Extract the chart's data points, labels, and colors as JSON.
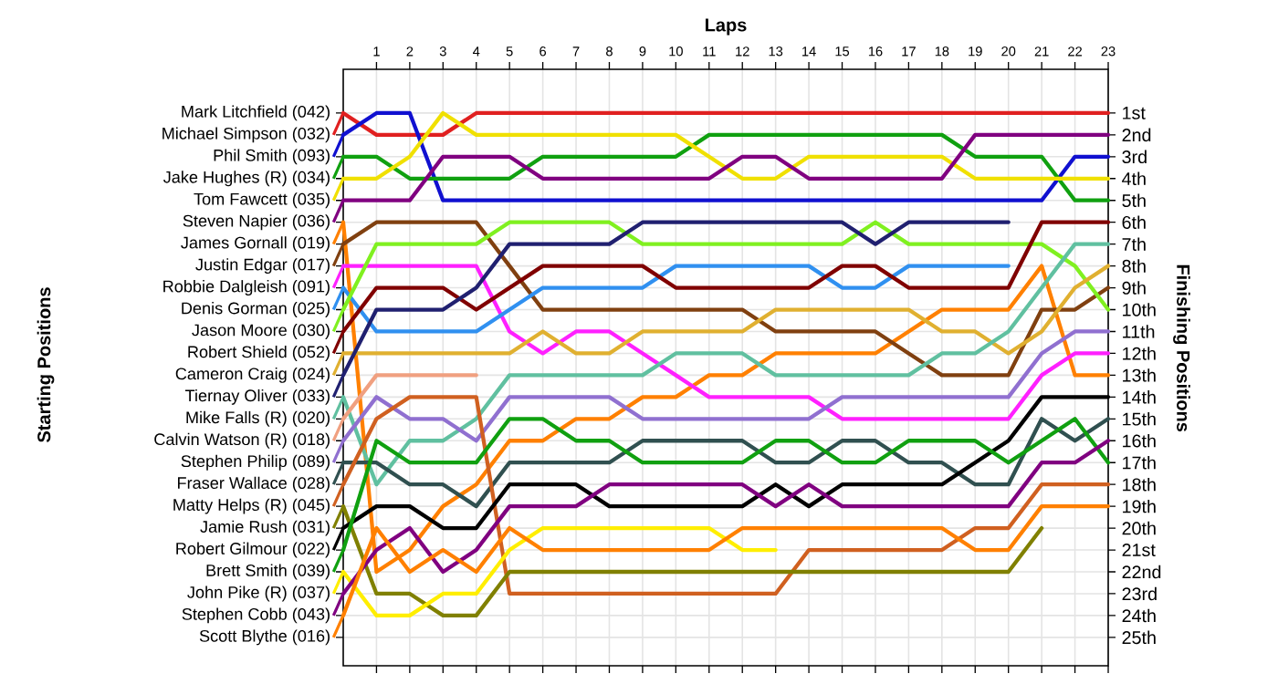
{
  "chart_data": {
    "type": "line",
    "xlabel": "Laps",
    "ylabel": "Finishing Positions",
    "annotations": [
      "Starting Positions",
      "Scott Blythe (016)"
    ],
    "legend": "left",
    "x": [
      0,
      1,
      2,
      3,
      4,
      5,
      6,
      7,
      8,
      9,
      10,
      11,
      12,
      13,
      14,
      15,
      16,
      17,
      18,
      19,
      20,
      21,
      22,
      23
    ],
    "xlim": [
      0,
      23
    ],
    "xticks": [
      1,
      2,
      3,
      4,
      5,
      6,
      7,
      8,
      9,
      10,
      11,
      12,
      13,
      14,
      15,
      16,
      17,
      18,
      19,
      20,
      21,
      22,
      23
    ],
    "ylim": [
      26.3,
      -1
    ],
    "yticks": [
      {
        "value": 1,
        "label": "1st"
      },
      {
        "value": 2,
        "label": "2nd"
      },
      {
        "value": 3,
        "label": "3rd"
      },
      {
        "value": 4,
        "label": "4th"
      },
      {
        "value": 5,
        "label": "5th"
      },
      {
        "value": 6,
        "label": "6th"
      },
      {
        "value": 7,
        "label": "7th"
      },
      {
        "value": 8,
        "label": "8th"
      },
      {
        "value": 9,
        "label": "9th"
      },
      {
        "value": 10,
        "label": "10th"
      },
      {
        "value": 11,
        "label": "11th"
      },
      {
        "value": 12,
        "label": "12th"
      },
      {
        "value": 13,
        "label": "13th"
      },
      {
        "value": 14,
        "label": "14th"
      },
      {
        "value": 15,
        "label": "15th"
      },
      {
        "value": 16,
        "label": "16th"
      },
      {
        "value": 17,
        "label": "17th"
      },
      {
        "value": 18,
        "label": "18th"
      },
      {
        "value": 19,
        "label": "19th"
      },
      {
        "value": 20,
        "label": "20th"
      },
      {
        "value": 21,
        "label": "21st"
      },
      {
        "value": 22,
        "label": "22nd"
      },
      {
        "value": 23,
        "label": "23rd"
      },
      {
        "value": 24,
        "label": "24th"
      },
      {
        "value": 25,
        "label": "25th"
      }
    ],
    "grid": true,
    "series": [
      {
        "name": "Mark Litchfield (042)",
        "color": "#e02020",
        "values": [
          1,
          2,
          2,
          2,
          1,
          1,
          1,
          1,
          1,
          1,
          1,
          1,
          1,
          1,
          1,
          1,
          1,
          1,
          1,
          1,
          1,
          1,
          1,
          1
        ]
      },
      {
        "name": "Michael Simpson (032)",
        "color": "#1010d0",
        "values": [
          2,
          1,
          1,
          5,
          5,
          5,
          5,
          5,
          5,
          5,
          5,
          5,
          5,
          5,
          5,
          5,
          5,
          5,
          5,
          5,
          5,
          5,
          3,
          3
        ]
      },
      {
        "name": "Phil Smith (093)",
        "color": "#10a010",
        "values": [
          3,
          3,
          4,
          4,
          4,
          4,
          3,
          3,
          3,
          3,
          3,
          2,
          2,
          2,
          2,
          2,
          2,
          2,
          2,
          3,
          3,
          3,
          5,
          5
        ]
      },
      {
        "name": "Jake Hughes  (R) (034)",
        "color": "#f0e000",
        "values": [
          4,
          4,
          3,
          1,
          2,
          2,
          2,
          2,
          2,
          2,
          2,
          3,
          4,
          4,
          3,
          3,
          3,
          3,
          3,
          4,
          4,
          4,
          4,
          4
        ]
      },
      {
        "name": "Tom Fawcett (035)",
        "color": "#800080",
        "values": [
          5,
          5,
          5,
          3,
          3,
          3,
          4,
          4,
          4,
          4,
          4,
          4,
          3,
          3,
          4,
          4,
          4,
          4,
          4,
          2,
          2,
          2,
          2,
          2
        ]
      },
      {
        "name": "Steven Napier (036)",
        "color": "#ff8000",
        "values": [
          6,
          22,
          21,
          19,
          18,
          16,
          16,
          15,
          15,
          14,
          14,
          13,
          13,
          12,
          12,
          12,
          12,
          11,
          10,
          10,
          10,
          8,
          13,
          13
        ]
      },
      {
        "name": "James Gornall (019)",
        "color": "#804010",
        "values": [
          7,
          6,
          6,
          6,
          6,
          8,
          10,
          10,
          10,
          10,
          10,
          10,
          10,
          11,
          11,
          11,
          11,
          12,
          13,
          13,
          13,
          10,
          10,
          9
        ]
      },
      {
        "name": "Justin Edgar (017)",
        "color": "#ff20ff",
        "values": [
          8,
          8,
          8,
          8,
          8,
          11,
          12,
          11,
          11,
          12,
          13,
          14,
          14,
          14,
          14,
          15,
          15,
          15,
          15,
          15,
          15,
          13,
          12,
          12
        ]
      },
      {
        "name": "Robbie Dalgleish (091)",
        "color": "#3090f0",
        "values": [
          9,
          11,
          11,
          11,
          11,
          10,
          9,
          9,
          9,
          9,
          8,
          8,
          8,
          8,
          8,
          9,
          9,
          8,
          8,
          8,
          8,
          null,
          null,
          null
        ]
      },
      {
        "name": "Denis Gorman (025)",
        "color": "#80f020",
        "values": [
          10,
          7,
          7,
          7,
          7,
          6,
          6,
          6,
          6,
          7,
          7,
          7,
          7,
          7,
          7,
          7,
          6,
          7,
          7,
          7,
          7,
          7,
          8,
          10
        ]
      },
      {
        "name": "Jason Moore (030)",
        "color": "#800000",
        "values": [
          11,
          9,
          9,
          9,
          10,
          9,
          8,
          8,
          8,
          8,
          9,
          9,
          9,
          9,
          9,
          8,
          8,
          9,
          9,
          9,
          9,
          6,
          6,
          6
        ]
      },
      {
        "name": "Robert Shield (052)",
        "color": "#e0b030",
        "values": [
          12,
          12,
          12,
          12,
          12,
          12,
          11,
          12,
          12,
          11,
          11,
          11,
          11,
          10,
          10,
          10,
          10,
          10,
          11,
          11,
          12,
          11,
          9,
          8
        ]
      },
      {
        "name": "Cameron Craig (024)",
        "color": "#202070",
        "values": [
          13,
          10,
          10,
          10,
          9,
          7,
          7,
          7,
          7,
          6,
          6,
          6,
          6,
          6,
          6,
          6,
          7,
          6,
          6,
          6,
          6,
          null,
          null,
          null
        ]
      },
      {
        "name": "Tiernay Oliver (033)",
        "color": "#60c0a0",
        "values": [
          14,
          18,
          16,
          16,
          15,
          13,
          13,
          13,
          13,
          13,
          12,
          12,
          12,
          13,
          13,
          13,
          13,
          13,
          12,
          12,
          11,
          9,
          7,
          7
        ]
      },
      {
        "name": "Mike Falls  (R) (020)",
        "color": "#f0a080",
        "values": [
          15,
          13,
          13,
          13,
          13,
          null,
          null,
          null,
          null,
          null,
          null,
          null,
          null,
          null,
          null,
          null,
          null,
          null,
          null,
          null,
          null,
          null,
          null,
          null
        ]
      },
      {
        "name": "Calvin Watson (R) (018)",
        "color": "#9070d0",
        "values": [
          16,
          14,
          15,
          15,
          16,
          14,
          14,
          14,
          14,
          15,
          15,
          15,
          15,
          15,
          15,
          14,
          14,
          14,
          14,
          14,
          14,
          12,
          11,
          11
        ]
      },
      {
        "name": "Stephen Philip (089)",
        "color": "#305050",
        "values": [
          17,
          17,
          18,
          18,
          19,
          17,
          17,
          17,
          17,
          16,
          16,
          16,
          16,
          17,
          17,
          16,
          16,
          17,
          17,
          18,
          18,
          15,
          16,
          15
        ]
      },
      {
        "name": "Fraser Wallace (028)",
        "color": "#d06020",
        "values": [
          18,
          15,
          14,
          14,
          14,
          23,
          23,
          23,
          23,
          23,
          23,
          23,
          23,
          23,
          21,
          21,
          21,
          21,
          21,
          20,
          20,
          18,
          18,
          18
        ]
      },
      {
        "name": "Matty Helps  (R) (045)",
        "color": "#808000",
        "values": [
          19,
          23,
          23,
          24,
          24,
          22,
          22,
          22,
          22,
          22,
          22,
          22,
          22,
          22,
          22,
          22,
          22,
          22,
          22,
          22,
          22,
          20,
          null,
          null
        ]
      },
      {
        "name": "Jamie Rush (031)",
        "color": "#000000",
        "values": [
          20,
          19,
          19,
          20,
          20,
          18,
          18,
          18,
          19,
          19,
          19,
          19,
          19,
          18,
          19,
          18,
          18,
          18,
          18,
          17,
          16,
          14,
          14,
          14
        ]
      },
      {
        "name": "Robert Gilmour (022)",
        "color": "#10a010",
        "values": [
          21,
          16,
          17,
          17,
          17,
          15,
          15,
          16,
          16,
          17,
          17,
          17,
          17,
          16,
          16,
          17,
          17,
          16,
          16,
          16,
          17,
          16,
          15,
          17
        ]
      },
      {
        "name": "Brett Smith (039)",
        "color": "#ffee00",
        "values": [
          22,
          24,
          24,
          23,
          23,
          21,
          20,
          20,
          20,
          20,
          20,
          20,
          21,
          21,
          null,
          null,
          null,
          null,
          null,
          null,
          null,
          null,
          null,
          null
        ]
      },
      {
        "name": "John Pike  (R) (037)",
        "color": "#800080",
        "values": [
          23,
          21,
          20,
          22,
          21,
          19,
          19,
          19,
          18,
          18,
          18,
          18,
          18,
          19,
          18,
          19,
          19,
          19,
          19,
          19,
          19,
          17,
          17,
          16
        ]
      },
      {
        "name": "Stephen Cobb (043)",
        "color": "#ff8000",
        "values": [
          24,
          20,
          22,
          21,
          22,
          20,
          21,
          21,
          21,
          21,
          21,
          21,
          20,
          20,
          20,
          20,
          20,
          20,
          20,
          21,
          21,
          19,
          19,
          19
        ]
      }
    ]
  }
}
